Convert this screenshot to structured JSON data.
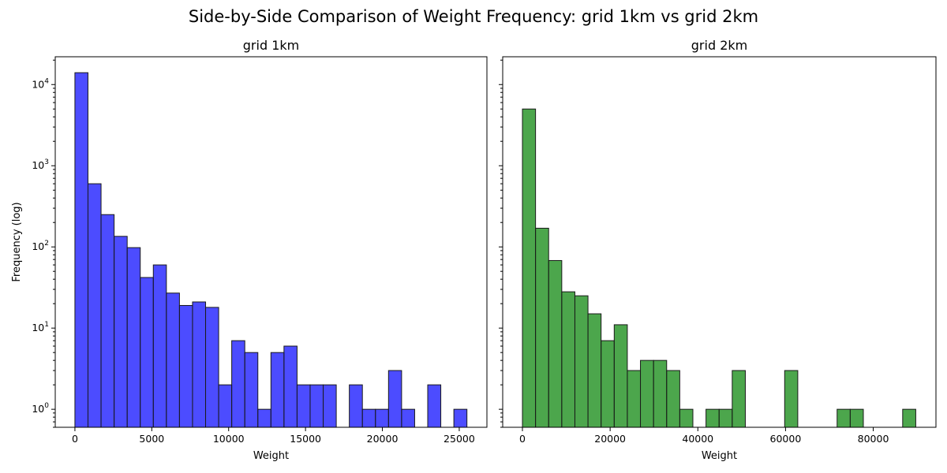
{
  "figure": {
    "suptitle": "Side-by-Side Comparison of Weight Frequency: grid 1km vs grid 2km"
  },
  "chart_data": [
    {
      "type": "bar",
      "title": "grid 1km",
      "xlabel": "Weight",
      "ylabel": "Frequency (log)",
      "yscale": "log",
      "ylim": [
        0.6,
        22000
      ],
      "xlim": [
        -1280,
        26800
      ],
      "color": "#0000ff",
      "opacity": 0.7,
      "edgecolor": "#000000",
      "xticks": [
        0,
        5000,
        10000,
        15000,
        20000,
        25000
      ],
      "xticklabels": [
        "0",
        "5000",
        "10000",
        "15000",
        "20000",
        "25000"
      ],
      "yticks": [
        1,
        10,
        100,
        1000,
        10000
      ],
      "bin_start": 0,
      "bin_width": 850,
      "values": [
        14000,
        600,
        250,
        135,
        98,
        42,
        60,
        27,
        19,
        21,
        18,
        2,
        7,
        5,
        1,
        5,
        6,
        2,
        2,
        2,
        0,
        2,
        1,
        1,
        3,
        1,
        0,
        2,
        0,
        1
      ],
      "grid": false
    },
    {
      "type": "bar",
      "title": "grid 2km",
      "xlabel": "Weight",
      "ylabel": "",
      "yscale": "log",
      "ylim": [
        0.6,
        22000
      ],
      "xlim": [
        -4500,
        94300
      ],
      "color": "#008000",
      "opacity": 0.7,
      "edgecolor": "#000000",
      "xticks": [
        0,
        20000,
        40000,
        60000,
        80000
      ],
      "xticklabels": [
        "0",
        "20000",
        "40000",
        "60000",
        "80000"
      ],
      "yticks": [
        1,
        10,
        100,
        1000,
        10000
      ],
      "bin_start": 0,
      "bin_width": 2990,
      "values": [
        5000,
        170,
        68,
        28,
        25,
        15,
        7,
        11,
        3,
        4,
        4,
        3,
        1,
        0,
        1,
        1,
        3,
        0,
        0,
        0,
        3,
        0,
        0,
        0,
        1,
        1,
        0,
        0,
        0,
        1
      ],
      "grid": false
    }
  ]
}
